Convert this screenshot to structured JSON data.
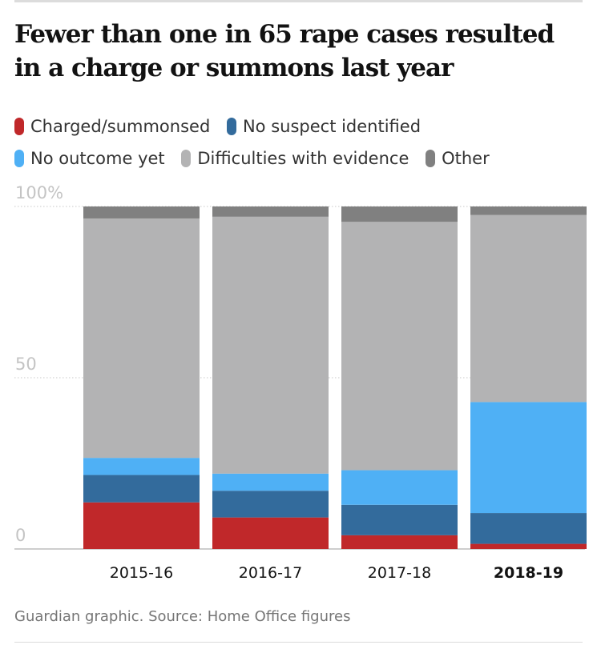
{
  "chart_data": {
    "type": "bar",
    "stacked": true,
    "title": "Fewer than one in 65 rape cases resulted in a charge or summons last year",
    "categories": [
      "2015-16",
      "2016-17",
      "2017-18",
      "2018-19"
    ],
    "highlighted_category": "2018-19",
    "series": [
      {
        "name": "Charged/summonsed",
        "color": "#c0282a",
        "values": [
          13.6,
          9.2,
          4.0,
          1.5
        ]
      },
      {
        "name": "No suspect identified",
        "color": "#336b9c",
        "values": [
          8.0,
          7.8,
          8.9,
          9.0
        ]
      },
      {
        "name": "No outcome yet",
        "color": "#4fb0f5",
        "values": [
          5.0,
          5.0,
          10.1,
          32.4
        ]
      },
      {
        "name": "Difficulties with evidence",
        "color": "#b3b3b4",
        "values": [
          69.9,
          75.0,
          72.5,
          54.6
        ]
      },
      {
        "name": "Other",
        "color": "#808080",
        "values": [
          3.5,
          3.0,
          4.5,
          2.5
        ]
      }
    ],
    "yticks": [
      "0",
      "50",
      "100%"
    ],
    "ytick_values": [
      0,
      50,
      100
    ],
    "ylim": [
      0,
      100
    ],
    "xlabel": "",
    "ylabel": "",
    "source": "Guardian graphic. Source: Home Office figures"
  }
}
